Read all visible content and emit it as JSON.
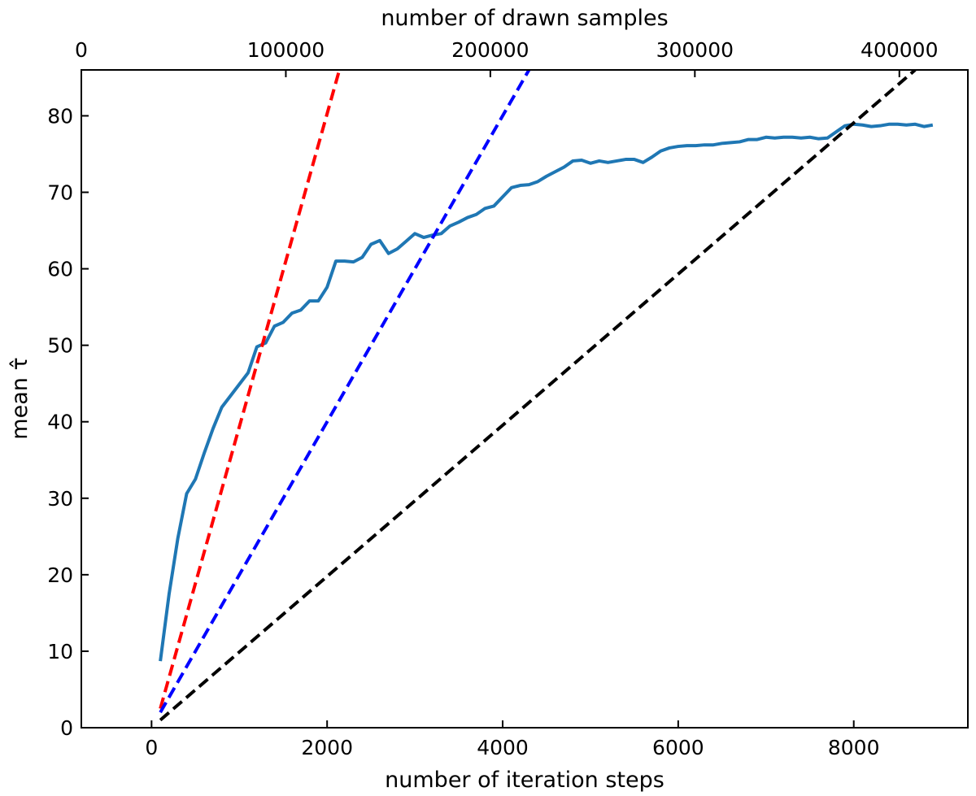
{
  "chart_data": {
    "type": "line",
    "xlabel": "number of iteration steps",
    "x2label": "number of drawn samples",
    "ylabel": "mean τ̂",
    "xlim": [
      -800,
      9300
    ],
    "ylim": [
      0,
      86
    ],
    "x2lim": [
      0,
      433500
    ],
    "x_ticks": [
      0,
      2000,
      4000,
      6000,
      8000
    ],
    "x_tick_labels": [
      "0",
      "2000",
      "4000",
      "6000",
      "8000"
    ],
    "x2_ticks": [
      0,
      100000,
      200000,
      300000,
      400000
    ],
    "x2_tick_labels": [
      "0",
      "100000",
      "200000",
      "300000",
      "400000"
    ],
    "y_ticks": [
      0,
      10,
      20,
      30,
      40,
      50,
      60,
      70,
      80
    ],
    "y_tick_labels": [
      "0",
      "10",
      "20",
      "30",
      "40",
      "50",
      "60",
      "70",
      "80"
    ],
    "grid": false,
    "series": [
      {
        "color": "#1f77b4",
        "style": "solid",
        "x": [
          100,
          200,
          300,
          400,
          500,
          600,
          700,
          800,
          900,
          1000,
          1100,
          1200,
          1300,
          1400,
          1500,
          1600,
          1700,
          1800,
          1900,
          2000,
          2100,
          2200,
          2300,
          2400,
          2500,
          2600,
          2700,
          2800,
          2900,
          3000,
          3100,
          3200,
          3300,
          3400,
          3500,
          3600,
          3700,
          3800,
          3900,
          4000,
          4100,
          4200,
          4300,
          4400,
          4500,
          4600,
          4700,
          4800,
          4900,
          5000,
          5100,
          5200,
          5300,
          5400,
          5500,
          5600,
          5700,
          5800,
          5900,
          6000,
          6100,
          6200,
          6300,
          6400,
          6500,
          6600,
          6700,
          6800,
          6900,
          7000,
          7100,
          7200,
          7300,
          7400,
          7500,
          7600,
          7700,
          7800,
          7900,
          8000,
          8100,
          8200,
          8300,
          8400,
          8500,
          8600,
          8700,
          8800,
          8900
        ],
        "y": [
          8.7,
          17.5,
          24.8,
          30.6,
          32.5,
          35.9,
          39.1,
          41.9,
          43.4,
          44.9,
          46.4,
          49.8,
          50.3,
          52.5,
          53.0,
          54.2,
          54.6,
          55.8,
          55.8,
          57.6,
          61.0,
          61.0,
          60.9,
          61.5,
          63.2,
          63.7,
          62.0,
          62.6,
          63.6,
          64.6,
          64.1,
          64.4,
          64.6,
          65.6,
          66.1,
          66.7,
          67.1,
          67.9,
          68.2,
          69.4,
          70.6,
          70.9,
          71.0,
          71.4,
          72.1,
          72.7,
          73.3,
          74.1,
          74.2,
          73.8,
          74.1,
          73.9,
          74.1,
          74.3,
          74.3,
          73.9,
          74.6,
          75.4,
          75.8,
          76.0,
          76.1,
          76.1,
          76.2,
          76.2,
          76.4,
          76.5,
          76.6,
          76.9,
          76.9,
          77.2,
          77.1,
          77.2,
          77.2,
          77.1,
          77.2,
          77.0,
          77.1,
          77.9,
          78.7,
          78.9,
          78.8,
          78.6,
          78.7,
          78.9,
          78.9,
          78.8,
          78.9,
          78.6,
          78.8
        ]
      },
      {
        "color": "#ff0000",
        "style": "dashed",
        "x": [
          100,
          2140
        ],
        "y": [
          2.5,
          86
        ]
      },
      {
        "color": "#0000ff",
        "style": "dashed",
        "x": [
          100,
          4300
        ],
        "y": [
          2.0,
          86
        ]
      },
      {
        "color": "#000000",
        "style": "dashed",
        "x": [
          100,
          8700
        ],
        "y": [
          1.0,
          86
        ]
      }
    ]
  }
}
